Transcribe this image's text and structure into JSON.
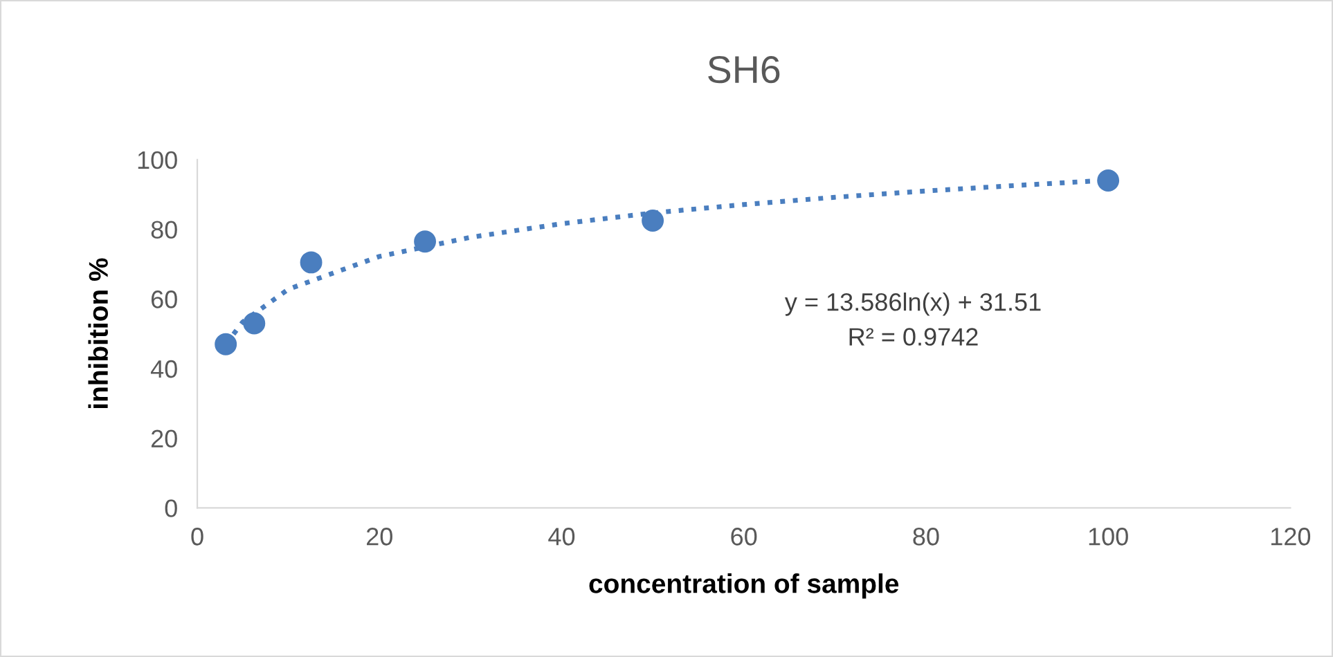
{
  "chart_data": {
    "type": "scatter",
    "title": "SH6",
    "xlabel": "concentration of sample",
    "ylabel": "inhibition %",
    "xlim": [
      0,
      120
    ],
    "xticks": [
      0,
      20,
      40,
      60,
      80,
      100,
      120
    ],
    "ylim": [
      0,
      100
    ],
    "yticks": [
      0,
      20,
      40,
      60,
      80,
      100
    ],
    "grid": false,
    "legend": false,
    "marker": "circle",
    "annotations": [
      "y = 13.586ln(x) + 31.51",
      "R² = 0.9742"
    ],
    "series": [
      {
        "color": "#4a7ebf",
        "x": [
          3.125,
          6.25,
          12.5,
          25,
          50,
          100
        ],
        "values": [
          47,
          53,
          70.5,
          76.5,
          82.5,
          94
        ]
      },
      {
        "type": "line",
        "color": "#4a7ebf",
        "line_style": "dotted",
        "marker": "none",
        "x": [
          3.125,
          5,
          10,
          20,
          30,
          40,
          50,
          60,
          70,
          80,
          90,
          100
        ],
        "values": [
          47.0,
          53.4,
          62.8,
          72.2,
          77.7,
          81.6,
          84.7,
          87.1,
          89.2,
          91.0,
          92.6,
          94.1
        ]
      }
    ]
  }
}
